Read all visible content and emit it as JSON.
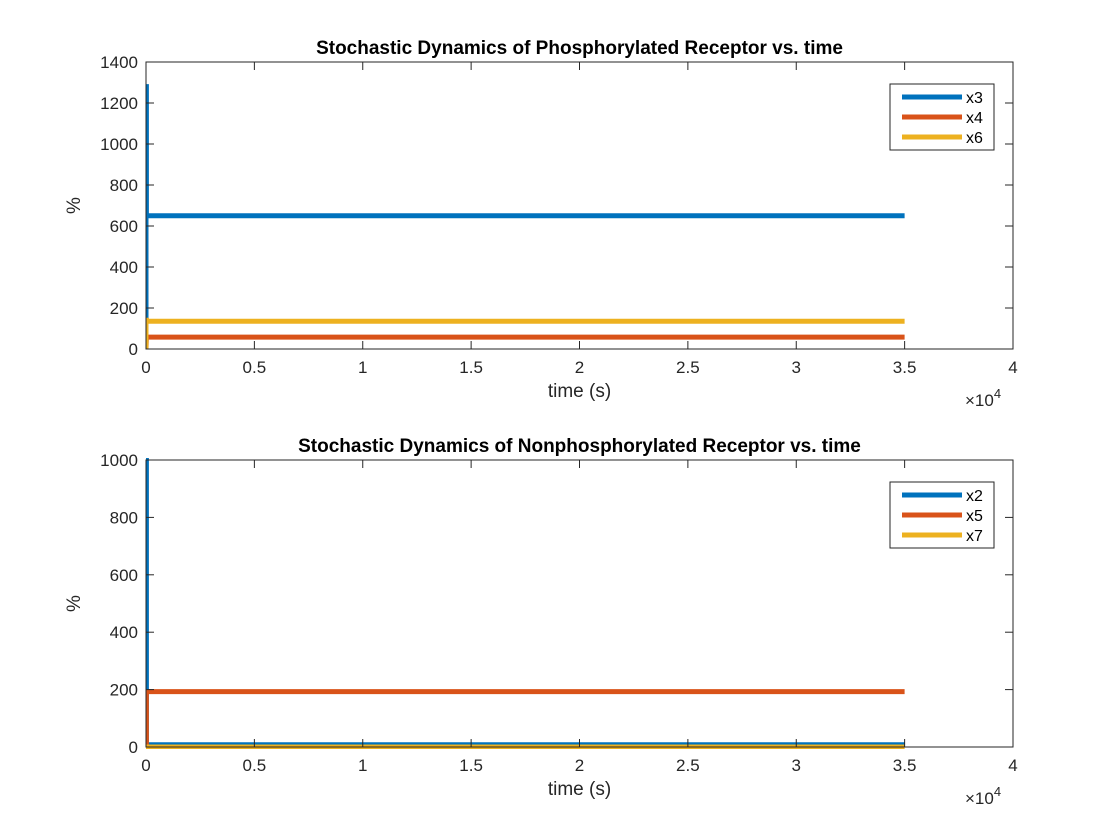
{
  "chart_data": [
    {
      "type": "line",
      "title": "Stochastic Dynamics of Phosphorylated Receptor vs. time",
      "xlabel": "time (s)",
      "ylabel": "%",
      "x_exponent_label": "×10",
      "x_exponent": "4",
      "xlim": [
        0,
        40000
      ],
      "ylim": [
        0,
        1400
      ],
      "xticks": [
        0,
        5000,
        10000,
        15000,
        20000,
        25000,
        30000,
        35000,
        40000
      ],
      "xtick_labels": [
        "0",
        "0.5",
        "1",
        "1.5",
        "2",
        "2.5",
        "3",
        "3.5",
        "4"
      ],
      "yticks": [
        0,
        200,
        400,
        600,
        800,
        1000,
        1200,
        1400
      ],
      "ytick_labels": [
        "0",
        "200",
        "400",
        "600",
        "800",
        "1000",
        "1200",
        "1400"
      ],
      "grid": false,
      "legend_position": "top-right",
      "series": [
        {
          "name": "x3",
          "color": "#0072BD",
          "x": [
            0,
            0,
            20,
            20,
            35000
          ],
          "y": [
            0,
            1280,
            1280,
            650,
            650
          ]
        },
        {
          "name": "x4",
          "color": "#D95319",
          "x": [
            0,
            20,
            35000
          ],
          "y": [
            0,
            58,
            58
          ]
        },
        {
          "name": "x6",
          "color": "#EDB120",
          "x": [
            0,
            0,
            20,
            20,
            35000
          ],
          "y": [
            0,
            140,
            140,
            135,
            135
          ]
        }
      ]
    },
    {
      "type": "line",
      "title": "Stochastic Dynamics of Nonphosphorylated Receptor vs. time",
      "xlabel": "time (s)",
      "ylabel": "%",
      "x_exponent_label": "×10",
      "x_exponent": "4",
      "xlim": [
        0,
        40000
      ],
      "ylim": [
        0,
        1000
      ],
      "xticks": [
        0,
        5000,
        10000,
        15000,
        20000,
        25000,
        30000,
        35000,
        40000
      ],
      "xtick_labels": [
        "0",
        "0.5",
        "1",
        "1.5",
        "2",
        "2.5",
        "3",
        "3.5",
        "4"
      ],
      "yticks": [
        0,
        200,
        400,
        600,
        800,
        1000
      ],
      "ytick_labels": [
        "0",
        "200",
        "400",
        "600",
        "800",
        "1000"
      ],
      "grid": false,
      "legend_position": "top-right",
      "series": [
        {
          "name": "x2",
          "color": "#0072BD",
          "x": [
            0,
            20,
            20,
            35000
          ],
          "y": [
            1000,
            1000,
            8,
            8
          ]
        },
        {
          "name": "x5",
          "color": "#D95319",
          "x": [
            0,
            20,
            20,
            35000
          ],
          "y": [
            0,
            0,
            193,
            193
          ]
        },
        {
          "name": "x7",
          "color": "#EDB120",
          "x": [
            0,
            35000
          ],
          "y": [
            0,
            0
          ]
        }
      ]
    }
  ]
}
